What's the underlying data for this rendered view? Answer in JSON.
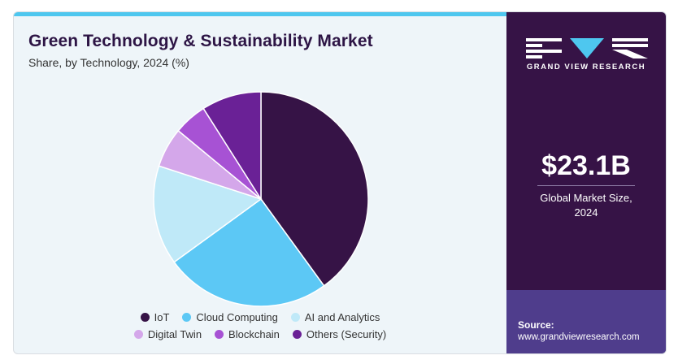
{
  "header": {
    "title": "Green Technology & Sustainability Market",
    "subtitle": "Share, by Technology, 2024 (%)"
  },
  "chart_data": {
    "type": "pie",
    "title": "Green Technology & Sustainability Market",
    "subtitle": "Share, by Technology, 2024 (%)",
    "start_angle_deg": 0,
    "direction": "clockwise",
    "legend_position": "bottom",
    "slices": [
      {
        "label": "IoT",
        "value": 40,
        "color": "#361346"
      },
      {
        "label": "Cloud Computing",
        "value": 25,
        "color": "#5cc8f5"
      },
      {
        "label": "AI and Analytics",
        "value": 15,
        "color": "#bfe9f8"
      },
      {
        "label": "Digital Twin",
        "value": 6,
        "color": "#d4a7ea"
      },
      {
        "label": "Blockchain",
        "value": 5,
        "color": "#a752d4"
      },
      {
        "label": "Others (Security)",
        "value": 9,
        "color": "#6a2196"
      }
    ]
  },
  "legend": {
    "rows": [
      [
        0,
        1,
        2
      ],
      [
        3,
        4,
        5
      ]
    ]
  },
  "sidebar": {
    "brand": "GRAND VIEW RESEARCH",
    "market_value": "$23.1B",
    "market_label_line1": "Global Market Size,",
    "market_label_line2": "2024",
    "source_label": "Source:",
    "source_url": "www.grandviewresearch.com"
  }
}
